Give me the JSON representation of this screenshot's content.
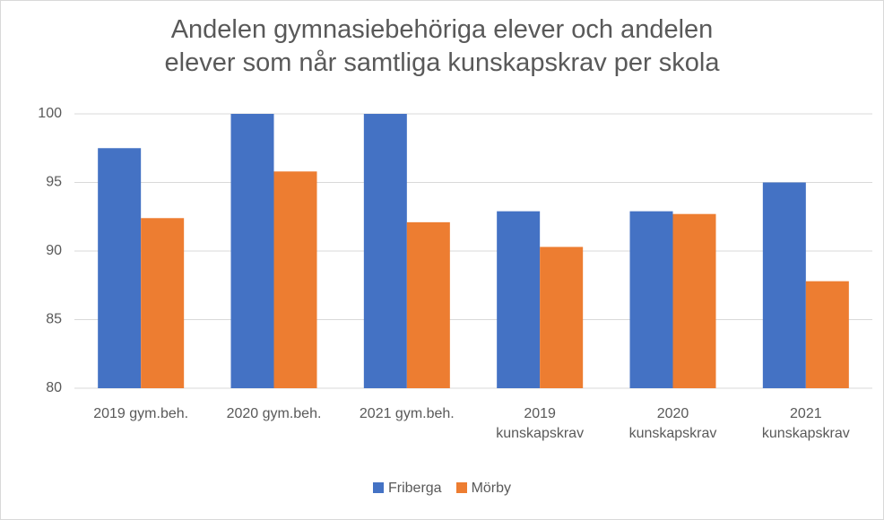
{
  "chart_data": {
    "type": "bar",
    "title": "Andelen gymnasiebehöriga elever och andelen\nelever som når samtliga kunskapskrav per skola",
    "categories": [
      "2019 gym.beh.",
      "2020 gym.beh.",
      "2021 gym.beh.",
      "2019\nkunskapskrav",
      "2020\nkunskapskrav",
      "2021\nkunskapskrav"
    ],
    "series": [
      {
        "name": "Friberga",
        "color": "#4472c4",
        "values": [
          97.5,
          100,
          100,
          92.9,
          92.9,
          95.0
        ]
      },
      {
        "name": "Mörby",
        "color": "#ed7d31",
        "values": [
          92.4,
          95.8,
          92.1,
          90.3,
          92.7,
          87.8
        ]
      }
    ],
    "ylim": [
      80,
      100
    ],
    "yticks": [
      80,
      85,
      90,
      95,
      100
    ],
    "grid": true,
    "legend": "bottom"
  }
}
